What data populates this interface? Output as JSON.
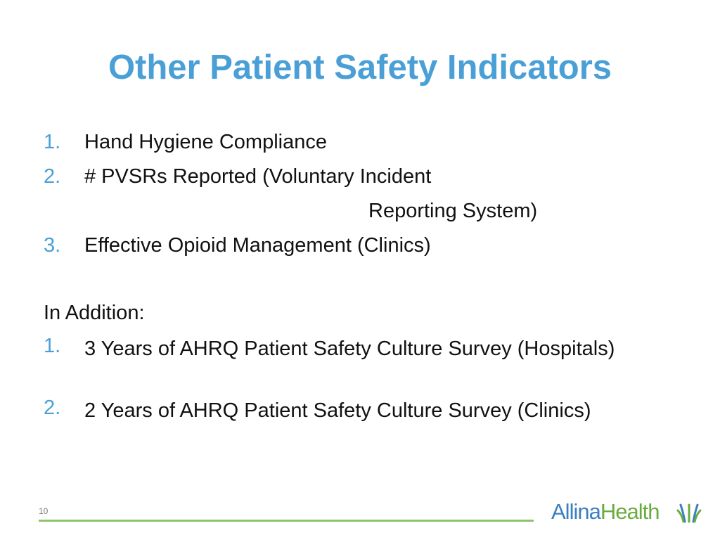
{
  "title": "Other Patient Safety Indicators",
  "list": [
    {
      "marker": "1.",
      "lines": [
        "Hand Hygiene Compliance"
      ]
    },
    {
      "marker": "2.",
      "lines": [
        "# PVSRs Reported (Voluntary Incident",
        "Reporting System)"
      ]
    },
    {
      "marker": "3.",
      "lines": [
        "Effective Opioid Management (Clinics)"
      ]
    }
  ],
  "section_heading": "In Addition:",
  "addition_list": [
    {
      "marker": "1.",
      "text": "3 Years of AHRQ Patient Safety Culture Survey (Hospitals)"
    },
    {
      "marker": "2.",
      "text": "2 Years of AHRQ Patient Safety Culture Survey (Clinics)"
    }
  ],
  "footer": {
    "page_number": "10",
    "logo": {
      "part1": "Allina",
      "part2": "Health"
    }
  }
}
